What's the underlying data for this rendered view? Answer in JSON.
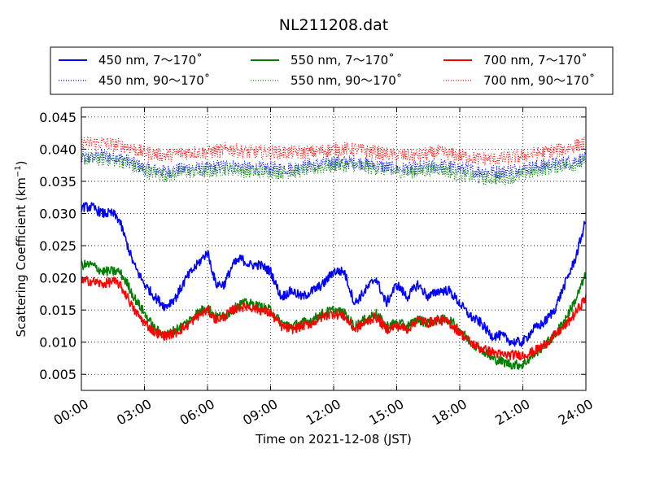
{
  "chart_data": {
    "type": "line",
    "title": "NL211208.dat",
    "xlabel": "Time on 2021-12-08 (JST)",
    "ylabel": "Scattering Coefficient (km",
    "ylabel_superscript": "−1",
    "ylabel_tail": ")",
    "xlim_hours": [
      0,
      24
    ],
    "ylim": [
      0.0025,
      0.0465
    ],
    "grid": true,
    "legend_placement": "top, outside plot",
    "x_ticks": [
      "00:00",
      "03:00",
      "06:00",
      "09:00",
      "12:00",
      "15:00",
      "18:00",
      "21:00",
      "24:00"
    ],
    "y_ticks": [
      "0.005",
      "0.010",
      "0.015",
      "0.020",
      "0.025",
      "0.030",
      "0.035",
      "0.040",
      "0.045"
    ],
    "series": [
      {
        "name": "450 nm, 7～170˚",
        "color": "#0000ff",
        "style": "solid",
        "x_hours": [
          0,
          0.5,
          1,
          1.5,
          1.8,
          2.2,
          2.5,
          3.0,
          3.5,
          4.0,
          4.5,
          5.0,
          5.5,
          6.0,
          6.4,
          6.8,
          7.2,
          7.6,
          8.0,
          8.5,
          9.0,
          9.5,
          10.0,
          10.5,
          11.0,
          11.5,
          12.0,
          12.5,
          13.0,
          13.5,
          14.0,
          14.5,
          15.0,
          15.5,
          16.0,
          16.5,
          17.0,
          17.5,
          18.0,
          18.5,
          19.0,
          19.5,
          20.0,
          20.5,
          21.0,
          21.5,
          22.0,
          22.5,
          23.0,
          23.5,
          24.0
        ],
        "values": [
          0.031,
          0.031,
          0.03,
          0.03,
          0.029,
          0.025,
          0.022,
          0.019,
          0.017,
          0.0155,
          0.017,
          0.02,
          0.022,
          0.024,
          0.019,
          0.019,
          0.022,
          0.023,
          0.022,
          0.022,
          0.021,
          0.017,
          0.018,
          0.017,
          0.018,
          0.019,
          0.021,
          0.021,
          0.016,
          0.018,
          0.02,
          0.016,
          0.019,
          0.017,
          0.019,
          0.017,
          0.018,
          0.018,
          0.016,
          0.014,
          0.013,
          0.011,
          0.011,
          0.01,
          0.01,
          0.012,
          0.013,
          0.015,
          0.019,
          0.023,
          0.029
        ]
      },
      {
        "name": "550 nm, 7～170˚",
        "color": "#008000",
        "style": "solid",
        "x_hours": [
          0,
          0.5,
          1,
          1.5,
          1.8,
          2.2,
          2.5,
          3.0,
          3.5,
          4.0,
          4.5,
          5.0,
          5.5,
          6.0,
          6.4,
          6.8,
          7.2,
          7.6,
          8.0,
          8.5,
          9.0,
          9.5,
          10.0,
          10.5,
          11.0,
          11.5,
          12.0,
          12.5,
          13.0,
          13.5,
          14.0,
          14.5,
          15.0,
          15.5,
          16.0,
          16.5,
          17.0,
          17.5,
          18.0,
          18.5,
          19.0,
          19.5,
          20.0,
          20.5,
          21.0,
          21.5,
          22.0,
          22.5,
          23.0,
          23.5,
          24.0
        ],
        "values": [
          0.022,
          0.022,
          0.021,
          0.021,
          0.021,
          0.019,
          0.017,
          0.0145,
          0.012,
          0.011,
          0.012,
          0.013,
          0.0145,
          0.0155,
          0.014,
          0.014,
          0.015,
          0.016,
          0.016,
          0.0155,
          0.015,
          0.013,
          0.0125,
          0.013,
          0.0135,
          0.0145,
          0.015,
          0.0145,
          0.0125,
          0.0135,
          0.0145,
          0.0125,
          0.013,
          0.0125,
          0.0135,
          0.013,
          0.0135,
          0.0135,
          0.012,
          0.01,
          0.009,
          0.0075,
          0.007,
          0.0065,
          0.0065,
          0.008,
          0.0095,
          0.011,
          0.0135,
          0.0165,
          0.0205
        ]
      },
      {
        "name": "700 nm, 7～170˚",
        "color": "#ff0000",
        "style": "solid",
        "x_hours": [
          0,
          0.5,
          1,
          1.5,
          1.8,
          2.2,
          2.5,
          3.0,
          3.5,
          4.0,
          4.5,
          5.0,
          5.5,
          6.0,
          6.4,
          6.8,
          7.2,
          7.6,
          8.0,
          8.5,
          9.0,
          9.5,
          10.0,
          10.5,
          11.0,
          11.5,
          12.0,
          12.5,
          13.0,
          13.5,
          14.0,
          14.5,
          15.0,
          15.5,
          16.0,
          16.5,
          17.0,
          17.5,
          18.0,
          18.5,
          19.0,
          19.5,
          20.0,
          20.5,
          21.0,
          21.5,
          22.0,
          22.5,
          23.0,
          23.5,
          24.0
        ],
        "values": [
          0.0195,
          0.0195,
          0.019,
          0.0195,
          0.019,
          0.017,
          0.015,
          0.013,
          0.0115,
          0.011,
          0.0115,
          0.0125,
          0.014,
          0.015,
          0.0135,
          0.014,
          0.015,
          0.0155,
          0.0155,
          0.015,
          0.0145,
          0.0125,
          0.012,
          0.0125,
          0.013,
          0.014,
          0.0145,
          0.014,
          0.012,
          0.013,
          0.014,
          0.012,
          0.0125,
          0.012,
          0.0135,
          0.013,
          0.0135,
          0.013,
          0.0115,
          0.01,
          0.009,
          0.0085,
          0.008,
          0.008,
          0.008,
          0.0085,
          0.0095,
          0.011,
          0.0125,
          0.0145,
          0.017
        ]
      },
      {
        "name": "450 nm, 90～170˚",
        "color": "#0000ff",
        "style": "dotted",
        "x_hours": [
          0,
          1,
          2,
          3,
          4,
          5,
          6,
          7,
          8,
          9,
          10,
          11,
          12,
          13,
          14,
          15,
          16,
          17,
          18,
          19,
          20,
          21,
          22,
          23,
          24
        ],
        "values": [
          0.0385,
          0.039,
          0.0385,
          0.037,
          0.0365,
          0.037,
          0.037,
          0.0375,
          0.037,
          0.037,
          0.037,
          0.0375,
          0.038,
          0.038,
          0.0375,
          0.037,
          0.037,
          0.0375,
          0.037,
          0.0365,
          0.0365,
          0.037,
          0.0375,
          0.038,
          0.0385
        ]
      },
      {
        "name": "550 nm, 90～170˚",
        "color": "#008000",
        "style": "dotted",
        "x_hours": [
          0,
          1,
          2,
          3,
          4,
          5,
          6,
          7,
          8,
          9,
          10,
          11,
          12,
          13,
          14,
          15,
          16,
          17,
          18,
          19,
          20,
          21,
          22,
          23,
          24
        ],
        "values": [
          0.0385,
          0.0385,
          0.038,
          0.0365,
          0.036,
          0.0365,
          0.0365,
          0.037,
          0.0365,
          0.0365,
          0.0365,
          0.037,
          0.0375,
          0.0375,
          0.037,
          0.0365,
          0.0365,
          0.037,
          0.036,
          0.0355,
          0.0355,
          0.036,
          0.037,
          0.0375,
          0.038
        ]
      },
      {
        "name": "700 nm, 90～170˚",
        "color": "#ff0000",
        "style": "dotted",
        "x_hours": [
          0,
          1,
          2,
          3,
          4,
          5,
          6,
          7,
          8,
          9,
          10,
          11,
          12,
          13,
          14,
          15,
          16,
          17,
          18,
          19,
          20,
          21,
          22,
          23,
          24
        ],
        "values": [
          0.041,
          0.041,
          0.0405,
          0.0395,
          0.039,
          0.0395,
          0.0395,
          0.04,
          0.0395,
          0.0395,
          0.0395,
          0.0395,
          0.04,
          0.04,
          0.0395,
          0.039,
          0.039,
          0.0395,
          0.039,
          0.0385,
          0.0385,
          0.039,
          0.0395,
          0.04,
          0.041
        ]
      }
    ]
  }
}
